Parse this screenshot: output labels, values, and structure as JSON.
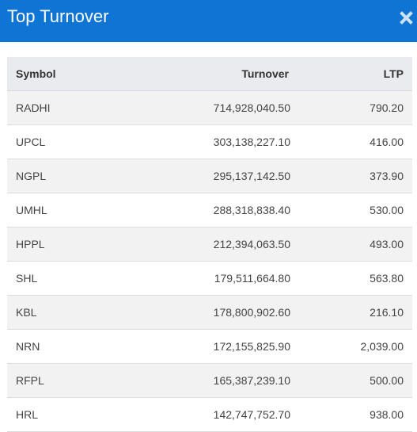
{
  "modal": {
    "title": "Top Turnover",
    "close_icon": "close-icon"
  },
  "table": {
    "headers": {
      "symbol": "Symbol",
      "turnover": "Turnover",
      "ltp": "LTP"
    },
    "rows": [
      {
        "symbol": "RADHI",
        "turnover": "714,928,040.50",
        "ltp": "790.20"
      },
      {
        "symbol": "UPCL",
        "turnover": "303,138,227.10",
        "ltp": "416.00"
      },
      {
        "symbol": "NGPL",
        "turnover": "295,137,142.50",
        "ltp": "373.90"
      },
      {
        "symbol": "UMHL",
        "turnover": "288,318,838.40",
        "ltp": "530.00"
      },
      {
        "symbol": "HPPL",
        "turnover": "212,394,063.50",
        "ltp": "493.00"
      },
      {
        "symbol": "SHL",
        "turnover": "179,511,664.80",
        "ltp": "563.80"
      },
      {
        "symbol": "KBL",
        "turnover": "178,800,902.60",
        "ltp": "216.10"
      },
      {
        "symbol": "NRN",
        "turnover": "172,155,825.90",
        "ltp": "2,039.00"
      },
      {
        "symbol": "RFPL",
        "turnover": "165,387,239.10",
        "ltp": "500.00"
      },
      {
        "symbol": "HRL",
        "turnover": "142,747,752.70",
        "ltp": "938.00"
      }
    ]
  },
  "colors": {
    "header_bg": "#0f75d4",
    "table_header_bg": "#e9ebee",
    "row_stripe": "#f2f2f2"
  }
}
